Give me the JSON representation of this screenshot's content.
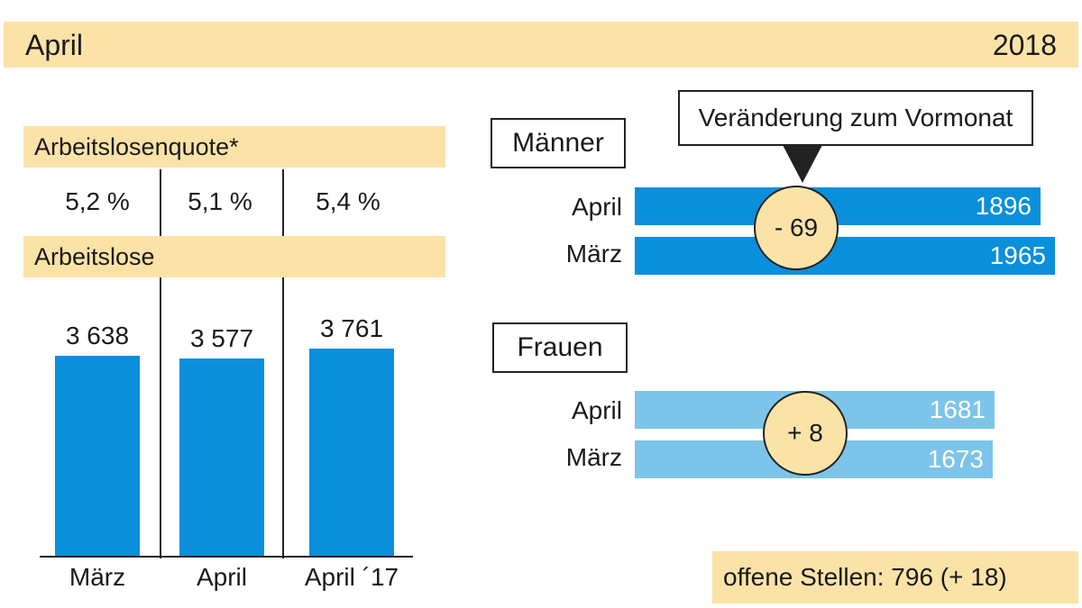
{
  "header": {
    "month": "April",
    "year": "2018"
  },
  "left": {
    "quote_label": "Arbeitslosenquote*",
    "quote_values": [
      "5,2 %",
      "5,1 %",
      "5,4 %"
    ],
    "count_label": "Arbeitslose"
  },
  "right": {
    "change_label": "Veränderung zum Vormonat",
    "men": {
      "title": "Männer",
      "rows": [
        {
          "label": "April",
          "value": "1896"
        },
        {
          "label": "März",
          "value": "1965"
        }
      ],
      "change": "- 69"
    },
    "women": {
      "title": "Frauen",
      "rows": [
        {
          "label": "April",
          "value": "1681"
        },
        {
          "label": "März",
          "value": "1673"
        }
      ],
      "change": "+ 8"
    },
    "open_positions": "offene Stellen: 796 (+ 18)"
  },
  "chart_data": [
    {
      "type": "bar",
      "title": "Arbeitslose",
      "categories": [
        "März",
        "April",
        "April ´17"
      ],
      "values": [
        3638,
        3577,
        3761
      ],
      "labels": [
        "3 638",
        "3 577",
        "3 761"
      ],
      "ylim": [
        0,
        3761
      ],
      "colors": {
        "bar": "#0a8fdb"
      }
    },
    {
      "type": "bar",
      "title": "Männer",
      "orientation": "horizontal",
      "categories": [
        "April",
        "März"
      ],
      "values": [
        1896,
        1965
      ],
      "colors": {
        "bar": "#0a8fdb"
      }
    },
    {
      "type": "bar",
      "title": "Frauen",
      "orientation": "horizontal",
      "categories": [
        "April",
        "März"
      ],
      "values": [
        1681,
        1673
      ],
      "colors": {
        "bar": "#7cc4ea"
      }
    }
  ],
  "colors": {
    "band": "#fbe3a8",
    "blue": "#0a8fdb",
    "light_blue": "#7cc4ea"
  }
}
